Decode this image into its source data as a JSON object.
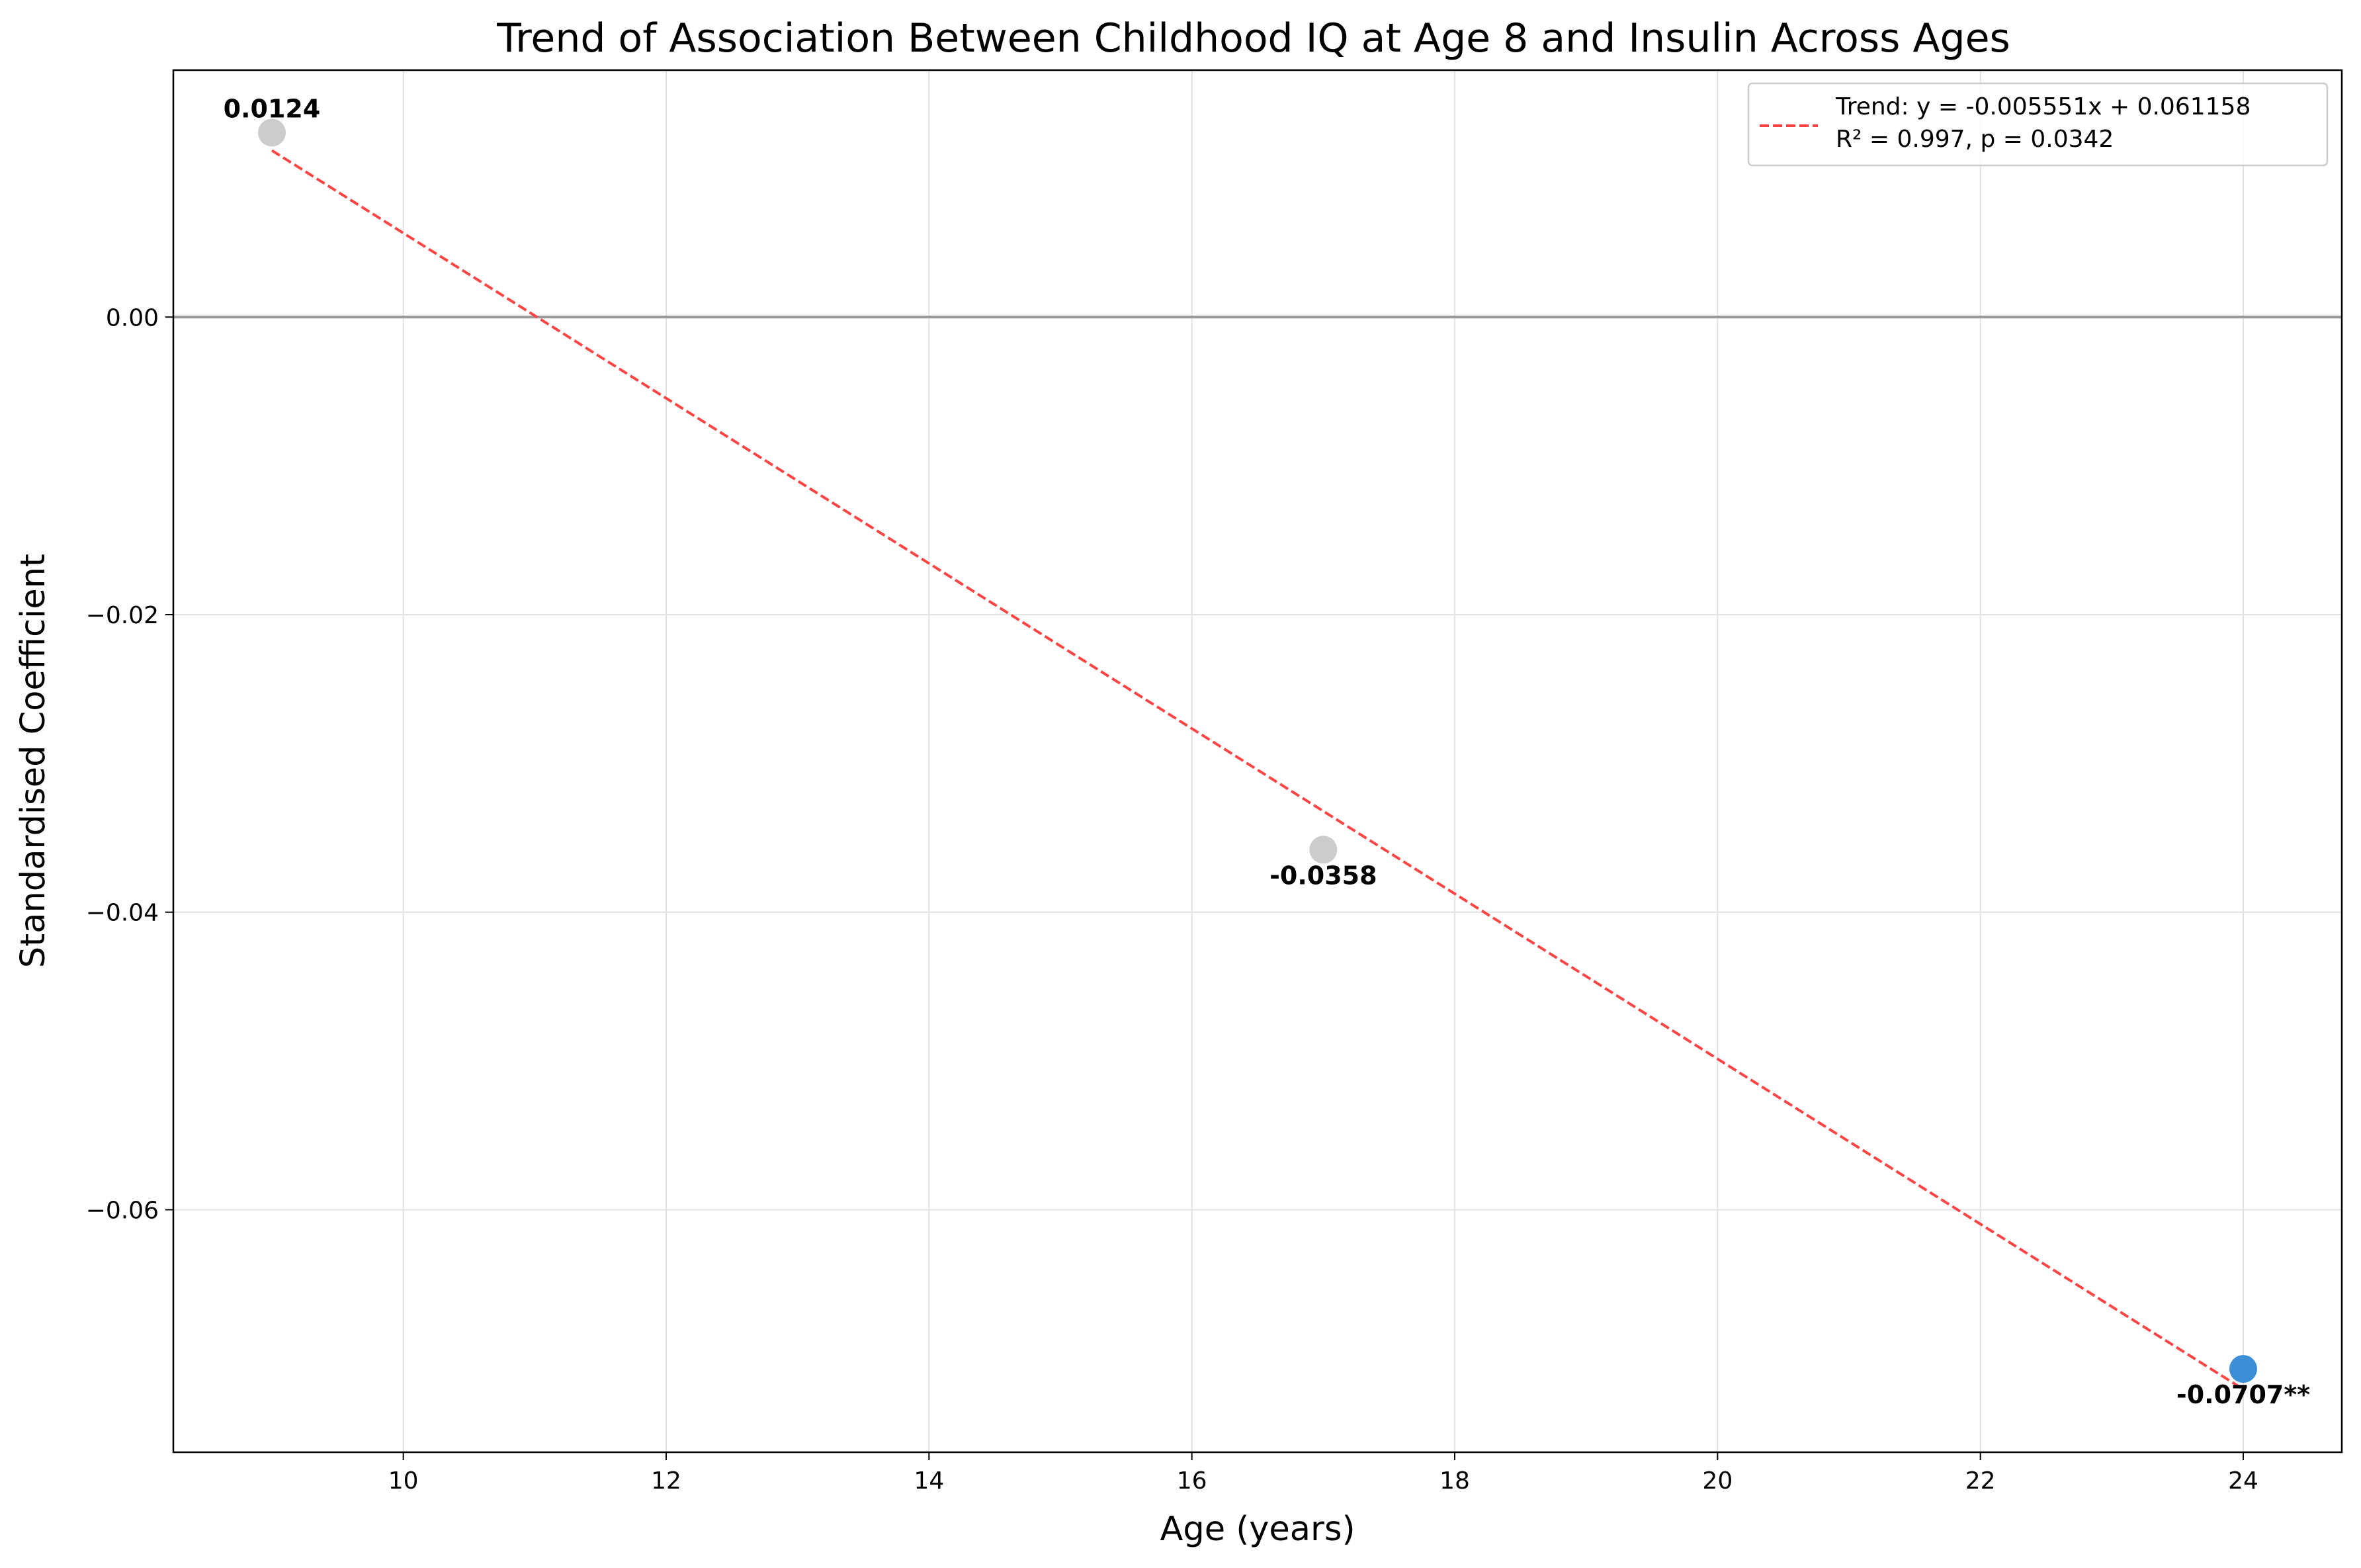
{
  "chart_data": {
    "type": "scatter",
    "title": "Trend of Association Between Childhood IQ at Age 8 and Insulin Across Ages",
    "xlabel": "Age (years)",
    "ylabel": "Standardised Coefficient",
    "xlim": [
      8.25,
      24.75
    ],
    "ylim": [
      -0.0763,
      0.0166
    ],
    "x_ticks": [
      10,
      12,
      14,
      16,
      18,
      20,
      22,
      24
    ],
    "x_tick_labels": [
      "10",
      "12",
      "14",
      "16",
      "18",
      "20",
      "22",
      "24"
    ],
    "y_ticks": [
      0.0,
      -0.02,
      -0.04,
      -0.06
    ],
    "y_tick_labels": [
      "0.00",
      "−0.02",
      "−0.04",
      "−0.06"
    ],
    "grid": true,
    "reference_line_y": 0,
    "points": [
      {
        "x": 9,
        "y": 0.0124,
        "label": "0.0124",
        "color": "#cccccc",
        "label_position": "above"
      },
      {
        "x": 17,
        "y": -0.0358,
        "label": "-0.0358",
        "color": "#cccccc",
        "label_position": "below"
      },
      {
        "x": 24,
        "y": -0.0707,
        "label": "-0.0707**",
        "color": "#3a8fd6",
        "label_position": "below"
      }
    ],
    "trend": {
      "slope": -0.005551,
      "intercept": 0.061158,
      "x_range": [
        9,
        24
      ],
      "color": "#ff4444",
      "style": "dashed"
    },
    "legend": {
      "placement": "top-right",
      "lines": [
        "Trend: y = -0.005551x + 0.061158",
        "R² = 0.997, p = 0.0342"
      ]
    }
  }
}
